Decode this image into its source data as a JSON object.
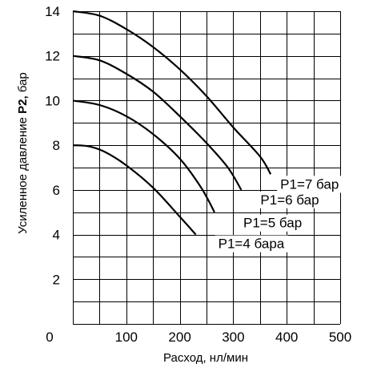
{
  "chart_data": {
    "type": "line",
    "xlabel": "Расход, нл/мин",
    "ylabel_prefix": "Усиленное давление ",
    "ylabel_bold": "P2,",
    "ylabel_suffix": " бар",
    "xlim": [
      0,
      500
    ],
    "ylim": [
      0,
      14
    ],
    "x_ticks": [
      0,
      100,
      200,
      300,
      400,
      500
    ],
    "y_ticks": [
      2,
      4,
      6,
      8,
      10,
      12,
      14
    ],
    "x_tick_labels": [
      "0",
      "100",
      "200",
      "300",
      "400",
      "500"
    ],
    "y_tick_labels": [
      "2",
      "4",
      "6",
      "8",
      "10",
      "12",
      "14"
    ],
    "grid": true,
    "series": [
      {
        "name": "P1=7 бар",
        "x": [
          0,
          50,
          100,
          150,
          200,
          250,
          300,
          350,
          370
        ],
        "y": [
          14,
          13.8,
          13.2,
          12.4,
          11.4,
          10.2,
          8.8,
          7.5,
          6.7
        ]
      },
      {
        "name": "P1=6 бар",
        "x": [
          0,
          50,
          100,
          150,
          200,
          250,
          290,
          315
        ],
        "y": [
          12,
          11.8,
          11.2,
          10.4,
          9.3,
          8.1,
          7.0,
          6.0
        ]
      },
      {
        "name": "P1=5 бар",
        "x": [
          0,
          50,
          100,
          150,
          200,
          240,
          265
        ],
        "y": [
          10,
          9.8,
          9.3,
          8.5,
          7.4,
          6.1,
          5.0
        ]
      },
      {
        "name": "P1=4 бара",
        "x": [
          0,
          30,
          60,
          100,
          150,
          200,
          230
        ],
        "y": [
          8,
          7.95,
          7.7,
          7.1,
          6.1,
          4.8,
          4.0
        ]
      }
    ]
  }
}
